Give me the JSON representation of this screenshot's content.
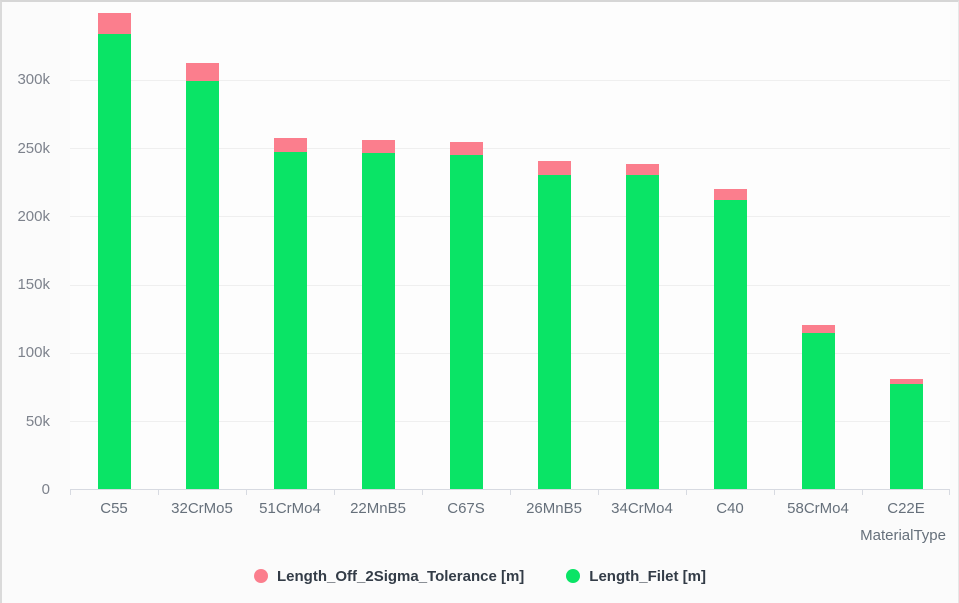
{
  "chart_data": {
    "type": "bar",
    "stacked": true,
    "title": "",
    "xlabel": "MaterialType",
    "ylabel": "",
    "grid": true,
    "legend_position": "bottom-center",
    "categories": [
      "C55",
      "32CrMo5",
      "51CrMo4",
      "22MnB5",
      "C67S",
      "26MnB5",
      "34CrMo4",
      "C40",
      "58CrMo4",
      "C22E"
    ],
    "series": [
      {
        "name": "Length_Filet [m]",
        "color": "#0ae466",
        "values": [
          333000,
          299000,
          247000,
          246000,
          245000,
          230000,
          230000,
          212000,
          114000,
          77000
        ]
      },
      {
        "name": "Length_Off_2Sigma_Tolerance [m]",
        "color": "#fb7e8d",
        "values": [
          15500,
          13000,
          10000,
          10000,
          9000,
          10000,
          8000,
          8000,
          6000,
          3500
        ]
      }
    ],
    "y_axis": {
      "visible_max": 357500,
      "ticks": [
        {
          "value": 0,
          "label": "0"
        },
        {
          "value": 50000,
          "label": "50k"
        },
        {
          "value": 100000,
          "label": "100k"
        },
        {
          "value": 150000,
          "label": "150k"
        },
        {
          "value": 200000,
          "label": "200k"
        },
        {
          "value": 250000,
          "label": "250k"
        },
        {
          "value": 300000,
          "label": "300k"
        }
      ]
    }
  },
  "legend": {
    "items": [
      {
        "label": "Length_Off_2Sigma_Tolerance [m]",
        "color": "#fb7e8d"
      },
      {
        "label": "Length_Filet [m]",
        "color": "#0ae466"
      }
    ]
  }
}
